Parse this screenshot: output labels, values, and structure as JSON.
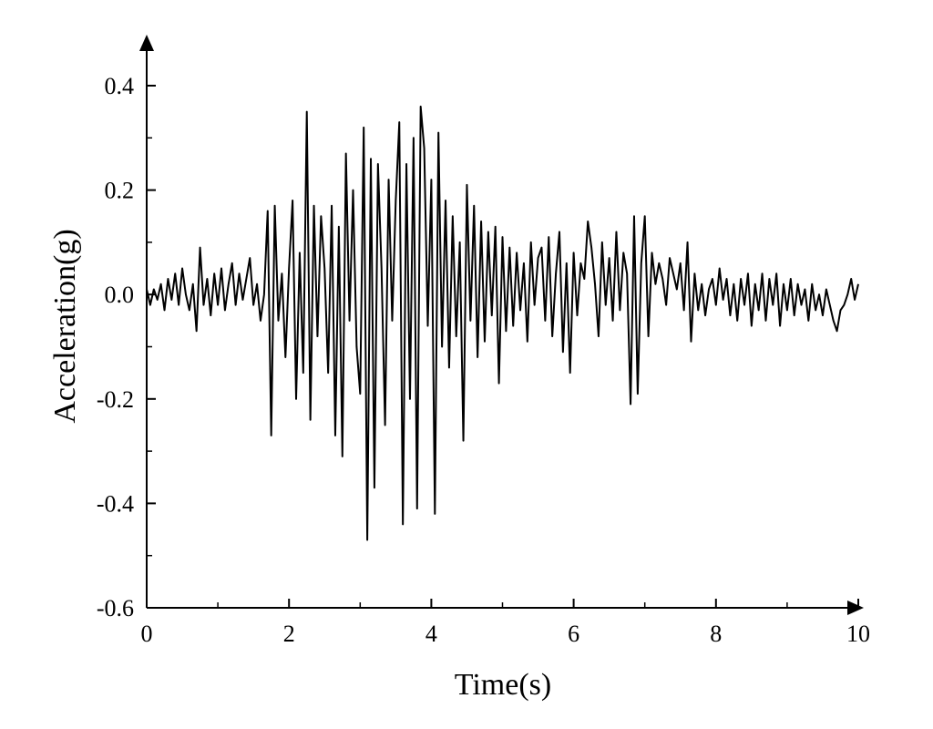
{
  "chart_data": {
    "type": "line",
    "xlabel": "Time(s)",
    "ylabel": "Acceleration(g)",
    "xlim": [
      0,
      10
    ],
    "ylim": [
      -0.6,
      0.4
    ],
    "xticks": [
      0,
      2,
      4,
      6,
      8,
      10
    ],
    "yticks": [
      -0.6,
      -0.4,
      -0.2,
      {
        "value": 0,
        "label": "0.0"
      },
      0.2,
      0.4
    ],
    "xminorticks": [
      1,
      3,
      5,
      7,
      9
    ],
    "yminorticks": [
      -0.5,
      -0.3,
      -0.1,
      0.1,
      0.3
    ],
    "color": "#000000",
    "x": [
      0,
      0.05,
      0.1,
      0.15,
      0.2,
      0.25,
      0.3,
      0.35,
      0.4,
      0.45,
      0.5,
      0.55,
      0.6,
      0.65,
      0.7,
      0.75,
      0.8,
      0.85,
      0.9,
      0.95,
      1,
      1.05,
      1.1,
      1.15,
      1.2,
      1.25,
      1.3,
      1.35,
      1.4,
      1.45,
      1.5,
      1.55,
      1.6,
      1.65,
      1.7,
      1.75,
      1.8,
      1.85,
      1.9,
      1.95,
      2,
      2.05,
      2.1,
      2.15,
      2.2,
      2.25,
      2.3,
      2.35,
      2.4,
      2.45,
      2.5,
      2.55,
      2.6,
      2.65,
      2.7,
      2.75,
      2.8,
      2.85,
      2.9,
      2.95,
      3,
      3.05,
      3.1,
      3.15,
      3.2,
      3.25,
      3.3,
      3.35,
      3.4,
      3.45,
      3.5,
      3.55,
      3.6,
      3.65,
      3.7,
      3.75,
      3.8,
      3.85,
      3.9,
      3.95,
      4,
      4.05,
      4.1,
      4.15,
      4.2,
      4.25,
      4.3,
      4.35,
      4.4,
      4.45,
      4.5,
      4.55,
      4.6,
      4.65,
      4.7,
      4.75,
      4.8,
      4.85,
      4.9,
      4.95,
      5,
      5.05,
      5.1,
      5.15,
      5.2,
      5.25,
      5.3,
      5.35,
      5.4,
      5.45,
      5.5,
      5.55,
      5.6,
      5.65,
      5.7,
      5.75,
      5.8,
      5.85,
      5.9,
      5.95,
      6,
      6.05,
      6.1,
      6.15,
      6.2,
      6.25,
      6.3,
      6.35,
      6.4,
      6.45,
      6.5,
      6.55,
      6.6,
      6.65,
      6.7,
      6.75,
      6.8,
      6.85,
      6.9,
      6.95,
      7,
      7.05,
      7.1,
      7.15,
      7.2,
      7.25,
      7.3,
      7.35,
      7.4,
      7.45,
      7.5,
      7.55,
      7.6,
      7.65,
      7.7,
      7.75,
      7.8,
      7.85,
      7.9,
      7.95,
      8,
      8.05,
      8.1,
      8.15,
      8.2,
      8.25,
      8.3,
      8.35,
      8.4,
      8.45,
      8.5,
      8.55,
      8.6,
      8.65,
      8.7,
      8.75,
      8.8,
      8.85,
      8.9,
      8.95,
      9,
      9.05,
      9.1,
      9.15,
      9.2,
      9.25,
      9.3,
      9.35,
      9.4,
      9.45,
      9.5,
      9.55,
      9.6,
      9.65,
      9.7,
      9.75,
      9.8,
      9.85,
      9.9,
      9.95,
      10
    ],
    "values": [
      0.01,
      -0.02,
      0.01,
      -0.01,
      0.02,
      -0.03,
      0.03,
      -0.01,
      0.04,
      -0.02,
      0.05,
      0.0,
      -0.03,
      0.02,
      -0.07,
      0.09,
      -0.02,
      0.03,
      -0.04,
      0.04,
      -0.02,
      0.05,
      -0.03,
      0.02,
      0.06,
      -0.02,
      0.04,
      -0.01,
      0.03,
      0.07,
      -0.02,
      0.02,
      -0.05,
      0.0,
      0.16,
      -0.27,
      0.17,
      -0.05,
      0.04,
      -0.12,
      0.05,
      0.18,
      -0.2,
      0.08,
      -0.15,
      0.35,
      -0.24,
      0.17,
      -0.08,
      0.15,
      0.05,
      -0.15,
      0.17,
      -0.27,
      0.13,
      -0.31,
      0.27,
      -0.05,
      0.2,
      -0.1,
      -0.19,
      0.32,
      -0.47,
      0.26,
      -0.37,
      0.25,
      0.05,
      -0.25,
      0.22,
      -0.05,
      0.18,
      0.33,
      -0.44,
      0.25,
      -0.2,
      0.3,
      -0.41,
      0.36,
      0.28,
      -0.06,
      0.22,
      -0.42,
      0.31,
      -0.1,
      0.18,
      -0.14,
      0.15,
      -0.08,
      0.1,
      -0.28,
      0.21,
      -0.05,
      0.17,
      -0.12,
      0.14,
      -0.09,
      0.12,
      -0.04,
      0.13,
      -0.17,
      0.11,
      -0.07,
      0.09,
      -0.06,
      0.08,
      -0.03,
      0.06,
      -0.09,
      0.1,
      -0.02,
      0.07,
      0.09,
      -0.05,
      0.11,
      -0.08,
      0.04,
      0.12,
      -0.11,
      0.06,
      -0.15,
      0.08,
      -0.04,
      0.06,
      0.03,
      0.14,
      0.09,
      0.02,
      -0.08,
      0.1,
      -0.02,
      0.07,
      -0.05,
      0.12,
      -0.03,
      0.08,
      0.04,
      -0.21,
      0.15,
      -0.19,
      0.06,
      0.15,
      -0.08,
      0.08,
      0.02,
      0.06,
      0.03,
      -0.02,
      0.07,
      0.04,
      0.01,
      0.06,
      -0.03,
      0.1,
      -0.09,
      0.04,
      -0.03,
      0.02,
      -0.04,
      0.01,
      0.03,
      -0.02,
      0.05,
      -0.01,
      0.03,
      -0.04,
      0.02,
      -0.05,
      0.03,
      -0.02,
      0.04,
      -0.06,
      0.02,
      -0.03,
      0.04,
      -0.05,
      0.03,
      -0.02,
      0.04,
      -0.06,
      0.02,
      -0.03,
      0.03,
      -0.04,
      0.02,
      -0.02,
      0.01,
      -0.05,
      0.02,
      -0.03,
      0.0,
      -0.04,
      0.01,
      -0.02,
      -0.05,
      -0.07,
      -0.03,
      -0.02,
      0.0,
      0.03,
      -0.01,
      0.02
    ]
  }
}
